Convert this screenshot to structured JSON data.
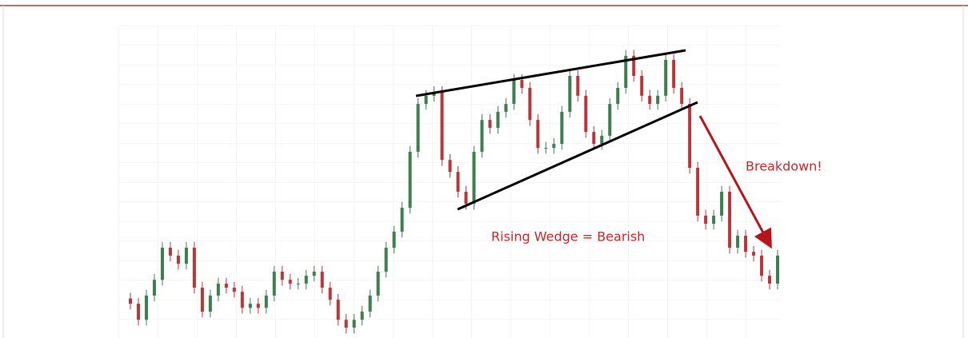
{
  "chart_data": {
    "type": "candlestick",
    "annotations": [
      "Rising Wedge = Bearish",
      "Breakdown!"
    ],
    "up_color": "#3f7d4f",
    "down_color": "#b5373a",
    "ylim": [
      -3,
      100
    ],
    "open": [
      10,
      8.2,
      2.7,
      11.0,
      16.4,
      27.4,
      24.7,
      21.9,
      27.4,
      13.7,
      5.5,
      11.0,
      15.1,
      13.7,
      12.3,
      6.8,
      8.2,
      6.8,
      11.0,
      19.2,
      16.4,
      15.1,
      15.1,
      17.8,
      19.2,
      13.7,
      9.6,
      2.7,
      0.0,
      2.7,
      5.5,
      11.0,
      19.2,
      27.4,
      32.9,
      41.1,
      60.3,
      76.7,
      79.5,
      80.8,
      57.5,
      53.4,
      46.6,
      42.5,
      60.3,
      71.2,
      68.5,
      74.0,
      76.7,
      84.9,
      82.2,
      71.2,
      61.6,
      61.6,
      63.0,
      74.0,
      86.3,
      79.5,
      67.1,
      63.0,
      65.8,
      76.7,
      82.2,
      93.2,
      86.3,
      79.5,
      76.7,
      79.5,
      91.8,
      82.2,
      76.7,
      54.8,
      38.4,
      35.6,
      38.4,
      46.6,
      27.4,
      31.5,
      26.0,
      24.7,
      17.8,
      15.1
    ],
    "close": [
      8.2,
      2.7,
      11.0,
      16.4,
      27.4,
      24.7,
      21.9,
      27.4,
      13.7,
      5.5,
      11.0,
      15.1,
      13.7,
      12.3,
      6.8,
      8.2,
      6.8,
      11.0,
      19.2,
      16.4,
      15.1,
      15.1,
      17.8,
      19.2,
      13.7,
      9.6,
      2.7,
      0.0,
      2.7,
      5.5,
      11.0,
      19.2,
      27.4,
      32.9,
      41.1,
      60.3,
      76.7,
      79.5,
      80.8,
      57.5,
      53.4,
      46.6,
      42.5,
      60.3,
      71.2,
      68.5,
      74.0,
      76.7,
      84.9,
      82.2,
      71.2,
      61.6,
      61.6,
      63.0,
      74.0,
      86.3,
      79.5,
      67.1,
      63.0,
      65.8,
      76.7,
      82.2,
      93.2,
      86.3,
      79.5,
      76.7,
      79.5,
      91.8,
      82.2,
      76.7,
      54.8,
      38.4,
      35.6,
      38.4,
      46.6,
      27.4,
      31.5,
      26.0,
      24.7,
      17.8,
      15.1,
      24.7
    ],
    "high": [
      12,
      10.2,
      13,
      18.4,
      29.4,
      29.4,
      26.7,
      29.4,
      29.4,
      15.7,
      13,
      17.1,
      17.1,
      15.7,
      14.3,
      10.2,
      10.2,
      13,
      21.2,
      21.2,
      18.4,
      17.1,
      19.8,
      21.2,
      21.2,
      15.7,
      11.6,
      4.7,
      4.7,
      7.5,
      13,
      21.2,
      29.4,
      34.9,
      43.1,
      62.3,
      78.7,
      81.5,
      82.8,
      82.8,
      59.5,
      55.4,
      48.6,
      62.3,
      73.2,
      73.2,
      76,
      78.7,
      86.9,
      86.9,
      84.2,
      73.2,
      63.6,
      65,
      76,
      88.3,
      88.3,
      81.5,
      69.1,
      67.8,
      78.7,
      84.2,
      95.2,
      95.2,
      88.3,
      81.5,
      81.5,
      93.8,
      93.8,
      84.2,
      78.7,
      56.8,
      40.4,
      40.4,
      48.6,
      48.6,
      33.5,
      33.5,
      28,
      26.7,
      19.8,
      26.7
    ],
    "low": [
      6.2,
      0.7,
      0.7,
      9,
      14.4,
      22.7,
      19.9,
      19.9,
      11.7,
      3.5,
      3.5,
      9,
      11.7,
      10.3,
      4.8,
      4.8,
      4.8,
      4.8,
      9,
      14.4,
      13.1,
      13.1,
      13.1,
      15.8,
      11.7,
      7.6,
      0.7,
      -2,
      -2,
      0.7,
      3.5,
      9,
      17.2,
      25.4,
      30.9,
      39.1,
      58.3,
      74.7,
      77.5,
      55.5,
      51.4,
      44.6,
      40.5,
      40.5,
      58.3,
      66.5,
      66.5,
      72,
      74.7,
      80.2,
      69.2,
      59.6,
      59.6,
      59.6,
      61,
      72,
      77.5,
      65.1,
      61,
      61,
      63.8,
      74.7,
      80.2,
      84.3,
      77.5,
      74.7,
      74.7,
      77.5,
      80.2,
      74.7,
      52.8,
      36.4,
      33.6,
      33.6,
      36.4,
      25.4,
      25.4,
      24,
      22.7,
      15.8,
      13.1,
      13.1
    ]
  }
}
